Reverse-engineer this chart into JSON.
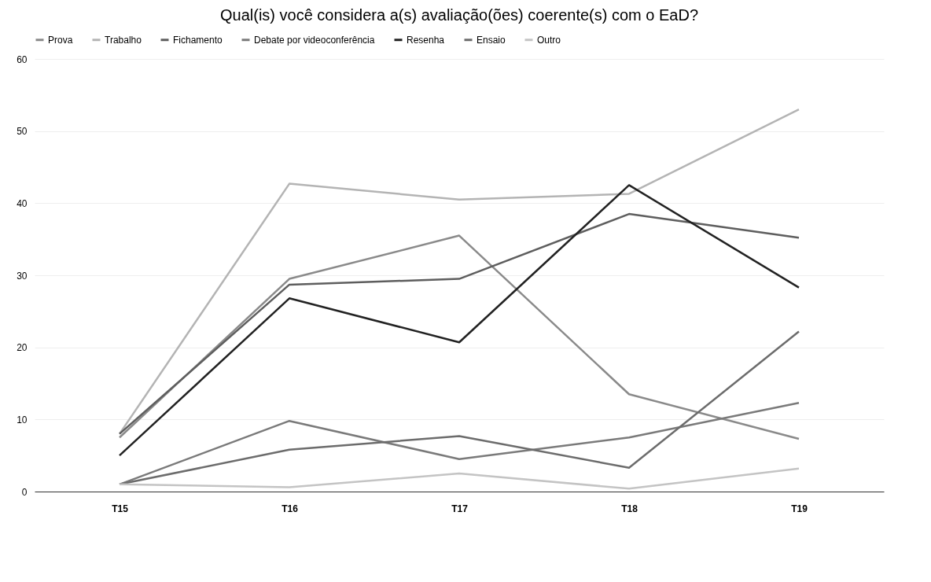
{
  "chart_data": {
    "type": "line",
    "title": "Qual(is) você considera a(s) avaliação(ões) coerente(s) com o EaD?",
    "categories": [
      "T15",
      "T16",
      "T17",
      "T18",
      "T19"
    ],
    "series": [
      {
        "name": "Prova",
        "color": "#8a8a8a",
        "values": [
          7.5,
          29.5,
          35.5,
          13.5,
          7.3
        ]
      },
      {
        "name": "Trabalho",
        "color": "#b4b4b4",
        "values": [
          8,
          42.7,
          40.5,
          41.3,
          53
        ]
      },
      {
        "name": "Fichamento",
        "color": "#5e5e5e",
        "values": [
          8,
          28.7,
          29.5,
          38.5,
          35.2
        ]
      },
      {
        "name": "Debate por videoconferência",
        "color": "#7a7a7a",
        "values": [
          1,
          9.8,
          4.5,
          7.5,
          12.3
        ]
      },
      {
        "name": "Resenha",
        "color": "#222222",
        "values": [
          5,
          26.8,
          20.7,
          42.5,
          28.3
        ]
      },
      {
        "name": "Ensaio",
        "color": "#6c6c6c",
        "values": [
          1,
          5.8,
          7.7,
          3.3,
          22.2
        ]
      },
      {
        "name": "Outro",
        "color": "#c4c4c4",
        "values": [
          1,
          0.6,
          2.5,
          0.4,
          3.2
        ]
      }
    ],
    "ylim": [
      0,
      60
    ],
    "yticks": [
      0,
      10,
      20,
      30,
      40,
      50,
      60
    ],
    "grid": "y",
    "legend": "top"
  }
}
